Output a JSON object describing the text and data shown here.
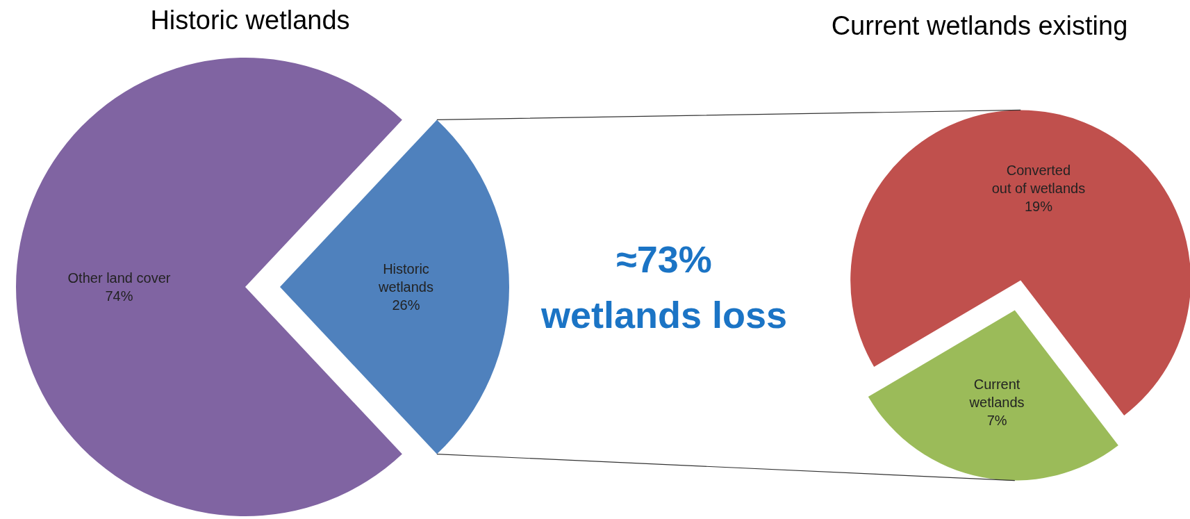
{
  "chart_data": [
    {
      "type": "pie",
      "title": "Historic wetlands",
      "categories": [
        "Other land cover",
        "Historic\nwetlands"
      ],
      "values": [
        74,
        26
      ],
      "colors": [
        "#8064a2",
        "#4f81bd"
      ],
      "value_labels": [
        "74%",
        "26%"
      ]
    },
    {
      "type": "pie",
      "title": "Current wetlands existing",
      "categories": [
        "Converted\nout of wetlands",
        "Current\nwetlands"
      ],
      "values": [
        19,
        7
      ],
      "colors": [
        "#c0504d",
        "#9bbb59"
      ],
      "value_labels": [
        "19%",
        "7%"
      ],
      "annotations": [
        "≈73%\nwetlands loss"
      ]
    }
  ]
}
